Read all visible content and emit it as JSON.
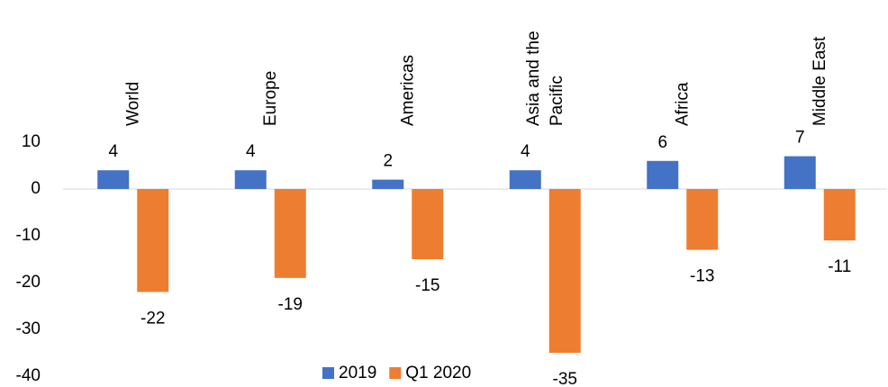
{
  "chart_data": {
    "type": "bar",
    "categories": [
      "World",
      "Europe",
      "Americas",
      "Asia and the Pacific",
      "Africa",
      "Middle East"
    ],
    "series": [
      {
        "name": "2019",
        "color": "#4472c4",
        "values": [
          4,
          4,
          2,
          4,
          6,
          7
        ]
      },
      {
        "name": "Q1 2020",
        "color": "#ed7d31",
        "values": [
          -22,
          -19,
          -15,
          -35,
          -13,
          -11
        ]
      }
    ],
    "ylim": [
      -40,
      10
    ],
    "yticks": [
      -40,
      -30,
      -20,
      -10,
      0,
      10
    ],
    "grid": false,
    "legend": "bottom"
  }
}
